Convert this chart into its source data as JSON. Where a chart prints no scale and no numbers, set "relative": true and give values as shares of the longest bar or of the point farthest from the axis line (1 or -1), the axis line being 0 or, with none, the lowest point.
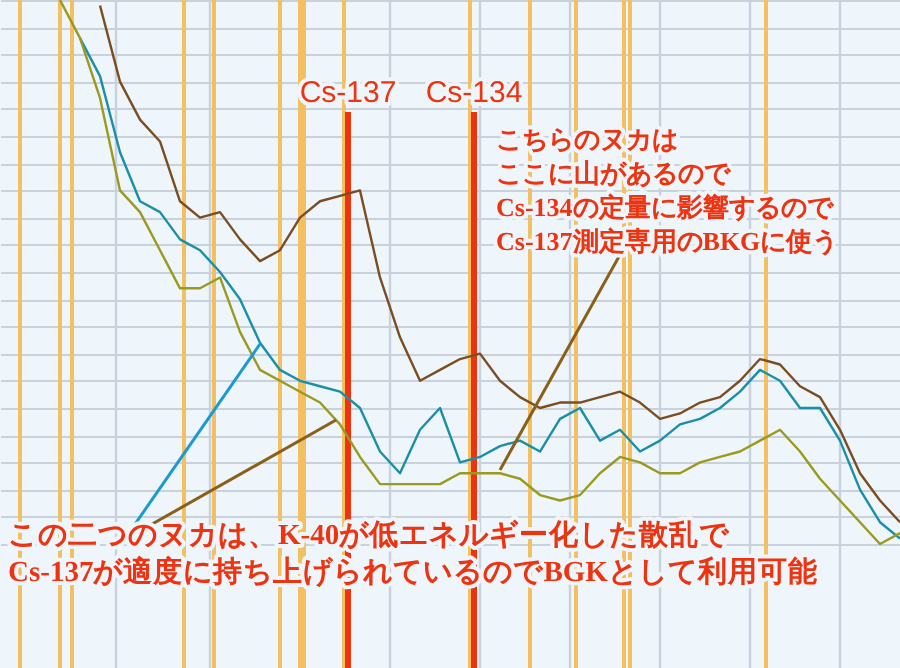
{
  "chart_data": {
    "type": "line",
    "relative": true,
    "grid": true,
    "line_style": "solid",
    "categories": [
      null,
      null,
      null,
      null,
      null,
      null,
      null,
      null,
      null,
      null,
      null,
      null,
      null,
      null,
      null,
      null,
      null,
      null,
      null,
      null,
      null,
      null,
      null,
      null,
      null,
      null,
      null,
      null,
      null,
      null,
      null,
      null,
      null,
      null,
      null,
      null,
      null,
      null,
      null,
      null,
      null,
      null,
      null
    ],
    "series": [
      {
        "color": "#7a4e22",
        "values": [
          null,
          null,
          0.99,
          0.85,
          0.78,
          0.74,
          0.63,
          0.6,
          0.61,
          0.56,
          0.52,
          0.54,
          0.6,
          0.63,
          0.64,
          0.65,
          0.49,
          0.38,
          0.3,
          0.32,
          0.34,
          0.35,
          0.3,
          0.27,
          0.25,
          0.26,
          0.26,
          0.27,
          0.28,
          0.26,
          0.23,
          0.24,
          0.26,
          0.27,
          0.3,
          0.34,
          0.33,
          0.29,
          0.27,
          0.21,
          0.13,
          0.08,
          0.04
        ]
      },
      {
        "color": "#1a8fa8",
        "values": [
          null,
          0.93,
          0.86,
          0.72,
          0.63,
          0.61,
          0.56,
          0.54,
          0.5,
          0.45,
          0.37,
          0.32,
          0.3,
          0.29,
          0.28,
          0.25,
          0.17,
          0.13,
          0.21,
          0.25,
          0.15,
          0.16,
          0.18,
          0.19,
          0.17,
          0.23,
          0.25,
          0.19,
          0.21,
          0.17,
          0.19,
          0.22,
          0.23,
          0.25,
          0.28,
          0.32,
          0.3,
          0.25,
          0.25,
          0.19,
          0.1,
          0.04,
          0.01
        ]
      },
      {
        "color": "#9a9a20",
        "values": [
          1.0,
          0.93,
          0.82,
          0.65,
          0.61,
          0.54,
          0.47,
          0.47,
          0.49,
          0.39,
          0.32,
          0.3,
          0.28,
          0.26,
          0.22,
          0.16,
          0.11,
          0.11,
          0.11,
          0.11,
          0.13,
          0.13,
          0.13,
          0.12,
          0.09,
          0.08,
          0.09,
          0.13,
          0.16,
          0.15,
          0.13,
          0.13,
          0.15,
          0.16,
          0.17,
          0.19,
          0.21,
          0.17,
          0.12,
          0.08,
          0.04,
          0,
          0.02
        ]
      }
    ],
    "annotations": [
      "Cs-137",
      "Cs-134",
      "こちらのヌカはここに山があるのでCs-134の定量に影響するのでCs-137測定専用のBKGに使う",
      "この二つのヌカは、K-40が低エネルギー化した散乱でCs-137が適度に持ち上げられているのでBGKとして利用可能"
    ]
  }
}
